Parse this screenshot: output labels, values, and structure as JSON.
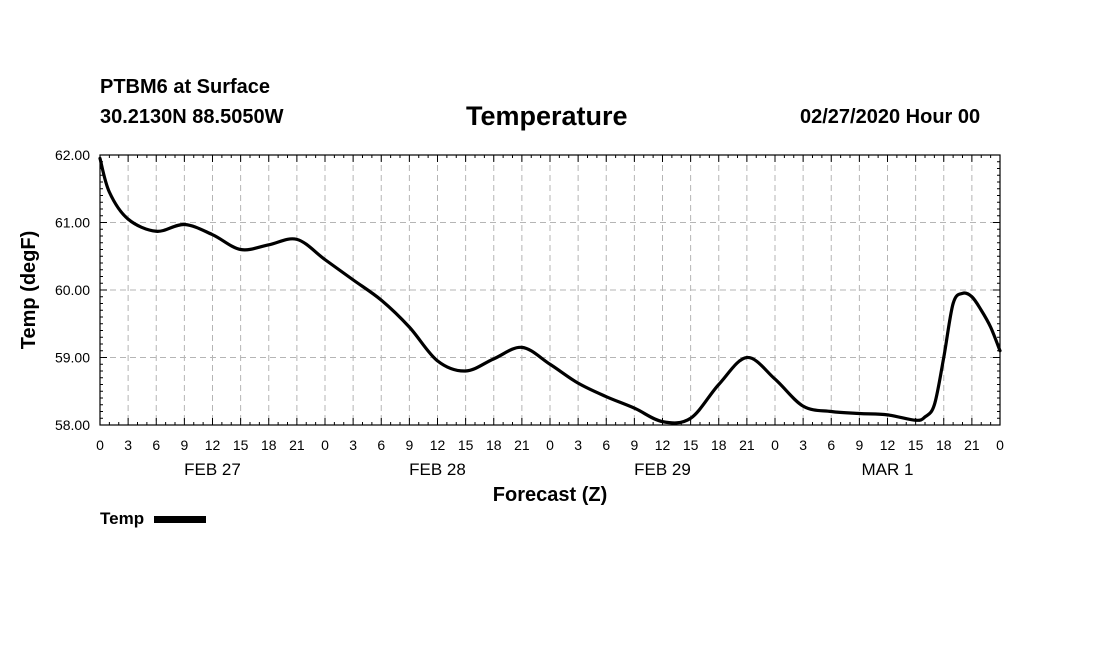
{
  "header": {
    "station": "PTBM6 at Surface",
    "coords": "30.2130N 88.5050W",
    "title": "Temperature",
    "datetime": "02/27/2020 Hour 00"
  },
  "chart_data": {
    "type": "line",
    "title": "Temperature",
    "xlabel": "Forecast (Z)",
    "ylabel": "Temp (degF)",
    "ylim": [
      58.0,
      62.0
    ],
    "yticks": [
      "58.00",
      "59.00",
      "60.00",
      "61.00",
      "62.00"
    ],
    "xlim": [
      0,
      96
    ],
    "x_tick_step_hours": 3,
    "x_tick_labels": [
      "0",
      "3",
      "6",
      "9",
      "12",
      "15",
      "18",
      "21",
      "0",
      "3",
      "6",
      "9",
      "12",
      "15",
      "18",
      "21",
      "0",
      "3",
      "6",
      "9",
      "12",
      "15",
      "18",
      "21",
      "0",
      "3",
      "6",
      "9",
      "12",
      "15",
      "18",
      "21",
      "0"
    ],
    "day_labels": [
      {
        "label": "FEB 27",
        "hour": 12
      },
      {
        "label": "FEB 28",
        "hour": 36
      },
      {
        "label": "FEB 29",
        "hour": 60
      },
      {
        "label": "MAR 1",
        "hour": 84
      }
    ],
    "grid": true,
    "legend": "bottom-left",
    "series": [
      {
        "name": "Temp",
        "color": "#000000",
        "x": [
          0,
          1,
          3,
          6,
          9,
          12,
          15,
          18,
          21,
          24,
          27,
          30,
          33,
          36,
          39,
          42,
          45,
          48,
          51,
          54,
          57,
          60,
          63,
          66,
          69,
          72,
          75,
          78,
          81,
          84,
          87,
          88,
          89,
          90,
          91,
          92,
          93,
          94,
          95,
          96
        ],
        "y": [
          61.95,
          61.45,
          61.05,
          60.87,
          60.97,
          60.82,
          60.6,
          60.67,
          60.75,
          60.45,
          60.15,
          59.85,
          59.45,
          58.95,
          58.8,
          58.98,
          59.15,
          58.9,
          58.62,
          58.42,
          58.25,
          58.05,
          58.1,
          58.6,
          59.0,
          58.68,
          58.28,
          58.2,
          58.17,
          58.15,
          58.07,
          58.12,
          58.3,
          59.0,
          59.8,
          59.95,
          59.9,
          59.7,
          59.45,
          59.1
        ]
      }
    ]
  },
  "legend": {
    "label": "Temp"
  }
}
